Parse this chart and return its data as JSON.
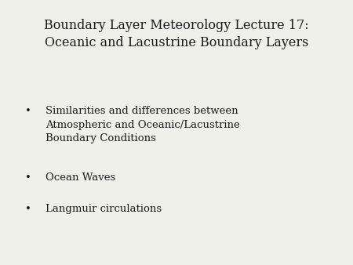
{
  "background_color": "#f0f0eb",
  "title_line1": "Boundary Layer Meteorology Lecture 17:",
  "title_line2": "Oceanic and Lacustrine Boundary Layers",
  "title_fontsize": 11.5,
  "title_color": "#1a1a1a",
  "bullet_items": [
    "Similarities and differences between\nAtmospheric and Oceanic/Lacustrine\nBoundary Conditions",
    "Ocean Waves",
    "Langmuir circulations"
  ],
  "bullet_fontsize": 9.5,
  "bullet_color": "#1a1a1a",
  "bullet_symbol": "•",
  "font_family": "DejaVu Serif"
}
